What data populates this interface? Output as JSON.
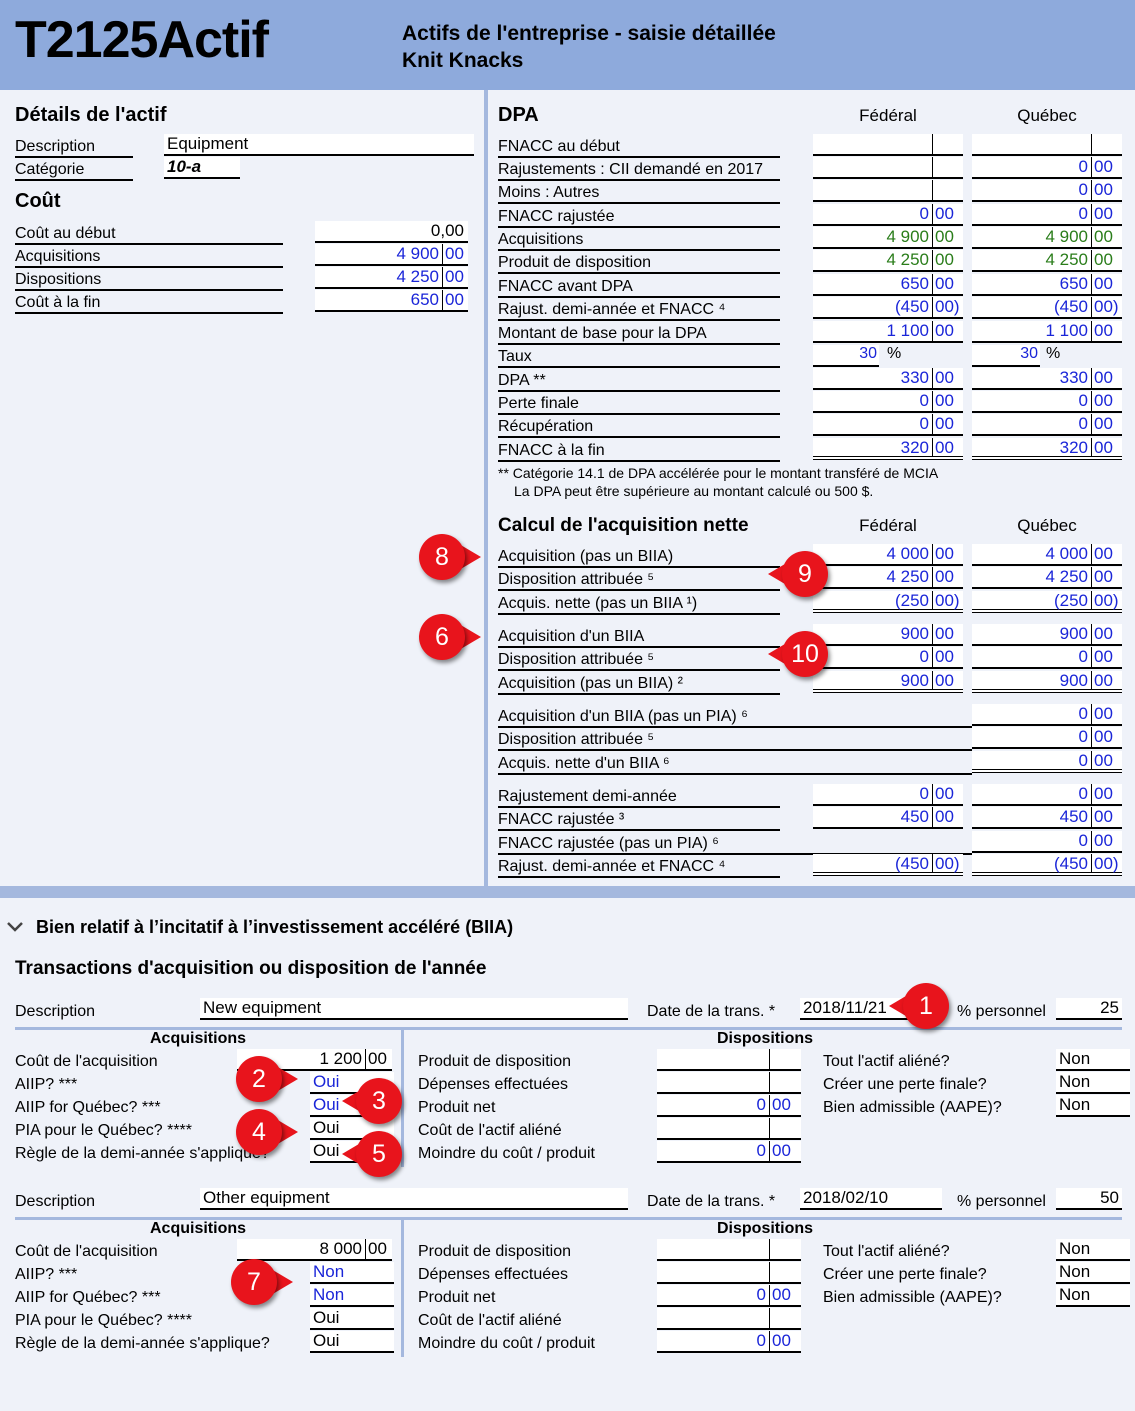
{
  "header": {
    "form_code": "T2125Actif",
    "title_line1": "Actifs de l'entreprise - saisie détaillée",
    "title_line2": "Knit Knacks"
  },
  "details": {
    "heading": "Détails de l'actif",
    "description_label": "Description",
    "description_value": "Equipment",
    "category_label": "Catégorie",
    "category_value": "10-a",
    "cost_heading": "Coût",
    "rows": [
      {
        "label": "Coût au début",
        "int": "0,00",
        "cents": ""
      },
      {
        "label": "Acquisitions",
        "int": "4 900",
        "cents": "00"
      },
      {
        "label": "Dispositions",
        "int": "4 250",
        "cents": "00"
      },
      {
        "label": "Coût à la fin",
        "int": "650",
        "cents": "00"
      }
    ]
  },
  "dpa": {
    "heading": "DPA",
    "col_federal": "Fédéral",
    "col_quebec": "Québec",
    "rows": [
      {
        "label": "FNACC au début",
        "fi": "",
        "fc": "",
        "qi": "",
        "qc": ""
      },
      {
        "label": "Rajustements : CII demandé en 2017",
        "fi": "",
        "fc": "",
        "qi": "0",
        "qc": "00"
      },
      {
        "label": "Moins : Autres",
        "fi": "",
        "fc": "",
        "qi": "0",
        "qc": "00"
      },
      {
        "label": "FNACC rajustée",
        "fi": "0",
        "fc": "00",
        "qi": "0",
        "qc": "00"
      },
      {
        "label": "Acquisitions",
        "fi": "4 900",
        "fc": "00",
        "qi": "4 900",
        "qc": "00"
      },
      {
        "label": "Produit de disposition",
        "fi": "4 250",
        "fc": "00",
        "qi": "4 250",
        "qc": "00"
      },
      {
        "label": "FNACC avant DPA",
        "fi": "650",
        "fc": "00",
        "qi": "650",
        "qc": "00"
      },
      {
        "label": "Rajust. demi-année et FNACC ⁴",
        "fi": "(450",
        "fc": "00)",
        "qi": "(450",
        "qc": "00)"
      },
      {
        "label": "Montant de base pour la DPA",
        "fi": "1 100",
        "fc": "00",
        "qi": "1 100",
        "qc": "00"
      },
      {
        "label": "Taux",
        "fi": "30",
        "fc": "%",
        "qi": "30",
        "qc": "%"
      },
      {
        "label": "DPA **",
        "fi": "330",
        "fc": "00",
        "qi": "330",
        "qc": "00"
      },
      {
        "label": "Perte finale",
        "fi": "0",
        "fc": "00",
        "qi": "0",
        "qc": "00"
      },
      {
        "label": "Récupération",
        "fi": "0",
        "fc": "00",
        "qi": "0",
        "qc": "00"
      },
      {
        "label": "FNACC à la fin",
        "fi": "320",
        "fc": "00",
        "qi": "320",
        "qc": "00"
      }
    ],
    "note1": "** Catégorie 14.1 de DPA accélérée pour le montant transféré de MCIA",
    "note2": "La DPA peut être supérieure au montant calculé ou 500 $."
  },
  "net": {
    "heading": "Calcul de l'acquisition nette",
    "col_federal": "Fédéral",
    "col_quebec": "Québec",
    "rows": [
      {
        "label": "Acquisition (pas un BIIA)",
        "fi": "4 000",
        "fc": "00",
        "qi": "4 000",
        "qc": "00"
      },
      {
        "label": "Disposition attribuée ⁵",
        "fi": "4 250",
        "fc": "00",
        "qi": "4 250",
        "qc": "00"
      },
      {
        "label": "Acquis. nette (pas un BIIA ¹)",
        "fi": "(250",
        "fc": "00)",
        "qi": "(250",
        "qc": "00)"
      },
      {
        "label": "Acquisition d'un BIIA",
        "fi": "900",
        "fc": "00",
        "qi": "900",
        "qc": "00"
      },
      {
        "label": "Disposition attribuée ⁵",
        "fi": "0",
        "fc": "00",
        "qi": "0",
        "qc": "00"
      },
      {
        "label": "Acquisition (pas un BIIA) ²",
        "fi": "900",
        "fc": "00",
        "qi": "900",
        "qc": "00"
      },
      {
        "label": "Acquisition d'un BIIA (pas un PIA) ⁶",
        "qi": "0",
        "qc": "00"
      },
      {
        "label": "Disposition attribuée ⁵",
        "qi": "0",
        "qc": "00"
      },
      {
        "label": "Acquis. nette d'un BIIA ⁶",
        "qi": "0",
        "qc": "00"
      },
      {
        "label": "Rajustement demi-année",
        "fi": "0",
        "fc": "00",
        "qi": "0",
        "qc": "00"
      },
      {
        "label": "FNACC rajustée ³",
        "fi": "450",
        "fc": "00",
        "qi": "450",
        "qc": "00"
      },
      {
        "label": "FNACC rajustée (pas un PIA) ⁶",
        "qi": "0",
        "qc": "00"
      },
      {
        "label": "Rajust. demi-année et FNACC ⁴",
        "fi": "(450",
        "fc": "00)",
        "qi": "(450",
        "qc": "00)"
      }
    ]
  },
  "biia": {
    "section_title": "Bien relatif à l’incitatif à l’investissement accéléré (BIIA)",
    "transactions_title": "Transactions d'acquisition ou disposition de l'année",
    "labels": {
      "description": "Description",
      "date": "Date de la trans. *",
      "pct": "% personnel",
      "acquisitions": "Acquisitions",
      "dispositions": "Dispositions",
      "cost": "Coût de l'acquisition",
      "aiip": "AIIP? ***",
      "aiip_qc": "AIIP for Québec? ***",
      "pia_qc": "PIA pour le Québec? ****",
      "half_year": "Règle de la demi-année s'applique?",
      "proceeds": "Produit de disposition",
      "expenses": "Dépenses effectuées",
      "net": "Produit net",
      "cost_alien": "Coût de l'actif aliéné",
      "lesser": "Moindre du coût / produit",
      "all_alien": "Tout l'actif aliéné?",
      "terminal_loss": "Créer une perte finale?",
      "eligible": "Bien admissible (AAPE)?"
    },
    "transactions": [
      {
        "description": "New equipment",
        "date": "2018/11/21",
        "pct": "25",
        "cost_int": "1 200",
        "cost_c": "00",
        "aiip": "Oui",
        "aiip_qc": "Oui",
        "pia_qc": "Oui",
        "half_year": "Oui",
        "net_int": "0",
        "net_c": "00",
        "lesser_int": "0",
        "lesser_c": "00",
        "all_alien": "Non",
        "terminal_loss": "Non",
        "eligible": "Non"
      },
      {
        "description": "Other equipment",
        "date": "2018/02/10",
        "pct": "50",
        "cost_int": "8 000",
        "cost_c": "00",
        "aiip": "Non",
        "aiip_qc": "Non",
        "pia_qc": "Oui",
        "half_year": "Oui",
        "net_int": "0",
        "net_c": "00",
        "lesser_int": "0",
        "lesser_c": "00",
        "all_alien": "Non",
        "terminal_loss": "Non",
        "eligible": "Non"
      }
    ]
  },
  "callouts": [
    "1",
    "2",
    "3",
    "4",
    "5",
    "6",
    "7",
    "8",
    "9",
    "10"
  ],
  "colors": {
    "header": "#8eaadc",
    "background": "#eff2f9",
    "input_blue": "#1a25d8",
    "input_green": "#2a7d1a",
    "callout_red": "#e8141c"
  }
}
